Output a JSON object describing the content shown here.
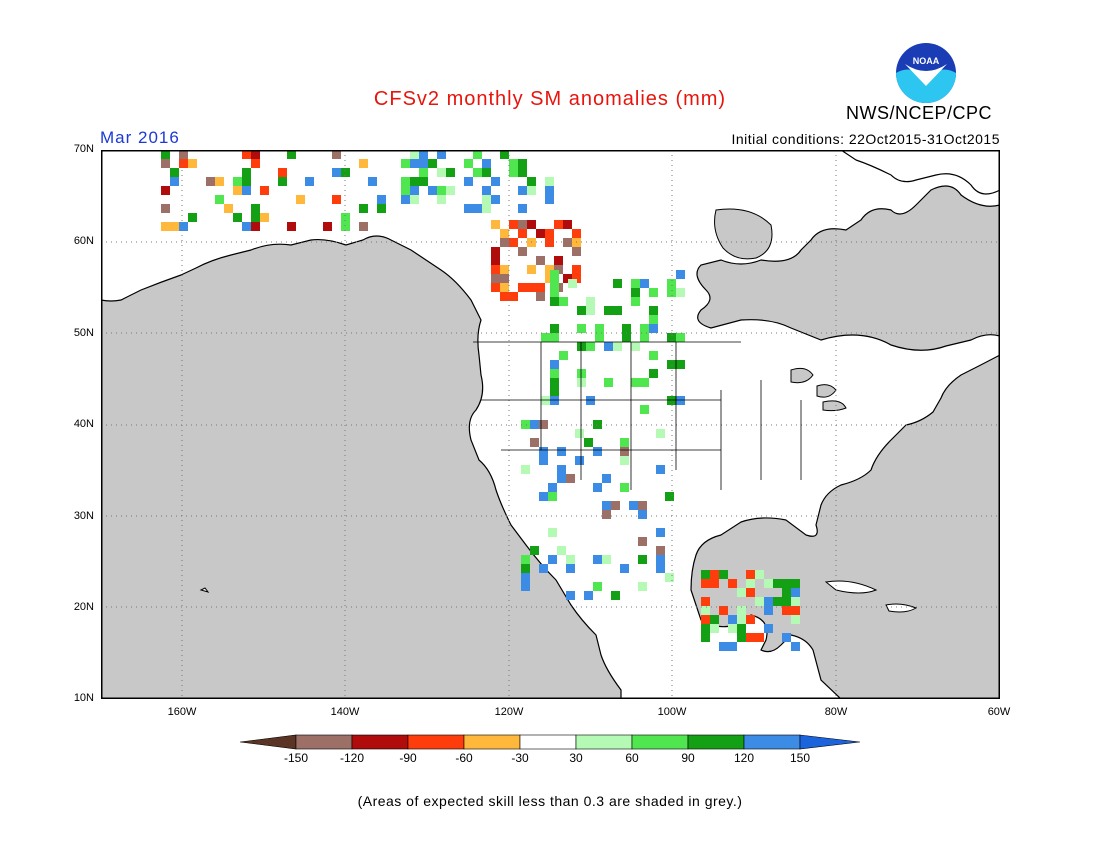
{
  "header": {
    "title": "CFSv2 monthly SM anomalies (mm)",
    "month": "Mar 2016",
    "initial_conditions": "Initial conditions: 22Oct2015-31Oct2015",
    "org": "NWS/NCEP/CPC",
    "logo_text": "NOAA"
  },
  "axes": {
    "lat_labels": [
      "70N",
      "60N",
      "50N",
      "40N",
      "30N",
      "20N",
      "10N"
    ],
    "lon_labels": [
      "160W",
      "140W",
      "120W",
      "100W",
      "80W",
      "60W"
    ]
  },
  "legend": {
    "labels": [
      "-150",
      "-120",
      "-90",
      "-60",
      "-30",
      "30",
      "60",
      "90",
      "120",
      "150"
    ],
    "colors": [
      "#5a3424",
      "#9c7066",
      "#b00c0c",
      "#ff3c0c",
      "#ffb83c",
      "#ffffff",
      "#b4fab4",
      "#50e650",
      "#14a014",
      "#3c8ce6",
      "#1c64dc"
    ]
  },
  "footnote": "(Areas of expected skill less than 0.3 are shaded in grey.)",
  "colors": {
    "ocean": "#c8c8c8",
    "land": "#ffffff",
    "title": "#e8140c",
    "month": "#1c39d6"
  }
}
